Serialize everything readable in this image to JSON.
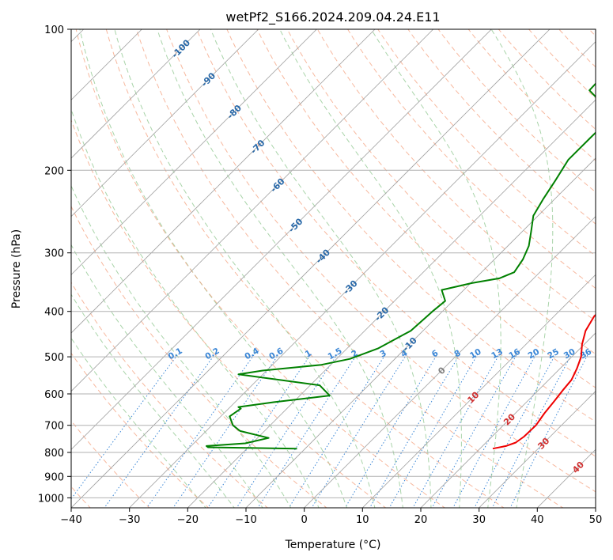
{
  "chart_data": {
    "type": "line",
    "subtype": "skew-t log-p",
    "title": "wetPf2_S166.2024.209.04.24.E11",
    "xlabel": "Temperature (°C)",
    "ylabel": "Pressure (hPa)",
    "xlim": [
      -40,
      50
    ],
    "ylim": [
      1050,
      100
    ],
    "y_scale": "log",
    "x_ticks": [
      "−40",
      "−30",
      "−20",
      "−10",
      "0",
      "10",
      "20",
      "30",
      "40",
      "50"
    ],
    "x_tick_values": [
      -40,
      -30,
      -20,
      -10,
      0,
      10,
      20,
      30,
      40,
      50
    ],
    "y_ticks": [
      "100",
      "200",
      "300",
      "400",
      "500",
      "600",
      "700",
      "800",
      "900",
      "1000"
    ],
    "y_tick_values": [
      100,
      200,
      300,
      400,
      500,
      600,
      700,
      800,
      900,
      1000
    ],
    "grid": true,
    "colors": {
      "temperature": "#ee0000",
      "dewpoint": "#008000",
      "isotherm": "#a0a0a0",
      "dry_adiabat": "#f4a07e",
      "moist_adiabat": "#9acc9a",
      "mixing_ratio": "#3a86d6",
      "moist_label": "#2868a8",
      "dry_label": "#d03030"
    },
    "series": [
      {
        "key": "temperature",
        "points": [
          {
            "p": 785,
            "t": 22.2
          },
          {
            "p": 775,
            "t": 24.0
          },
          {
            "p": 762,
            "t": 25.1
          },
          {
            "p": 740,
            "t": 25.5
          },
          {
            "p": 700,
            "t": 25.6
          },
          {
            "p": 660,
            "t": 25.0
          },
          {
            "p": 620,
            "t": 24.6
          },
          {
            "p": 590,
            "t": 24.2
          },
          {
            "p": 560,
            "t": 23.9
          },
          {
            "p": 530,
            "t": 22.9
          },
          {
            "p": 500,
            "t": 21.6
          },
          {
            "p": 470,
            "t": 19.6
          },
          {
            "p": 440,
            "t": 17.9
          },
          {
            "p": 410,
            "t": 16.9
          },
          {
            "p": 380,
            "t": 16.9
          },
          {
            "p": 355,
            "t": 16.0
          },
          {
            "p": 330,
            "t": 13.6
          },
          {
            "p": 300,
            "t": 10.1
          },
          {
            "p": 270,
            "t": 7.4
          },
          {
            "p": 240,
            "t": 5.6
          },
          {
            "p": 215,
            "t": 3.7
          },
          {
            "p": 190,
            "t": 2.3
          },
          {
            "p": 170,
            "t": 0.8
          },
          {
            "p": 155,
            "t": 0.1
          },
          {
            "p": 140,
            "t": 0.1
          },
          {
            "p": 130,
            "t": -0.7
          },
          {
            "p": 118,
            "t": -2.3
          },
          {
            "p": 110,
            "t": -3.4
          },
          {
            "p": 106,
            "t": -3.9
          }
        ]
      },
      {
        "key": "dewpoint",
        "points": [
          {
            "p": 785,
            "t": -11.4
          },
          {
            "p": 780,
            "t": -26.9
          },
          {
            "p": 775,
            "t": -27.4
          },
          {
            "p": 765,
            "t": -21.2
          },
          {
            "p": 745,
            "t": -18.1
          },
          {
            "p": 720,
            "t": -24.2
          },
          {
            "p": 700,
            "t": -26.4
          },
          {
            "p": 670,
            "t": -28.5
          },
          {
            "p": 645,
            "t": -27.9
          },
          {
            "p": 640,
            "t": -28.6
          },
          {
            "p": 625,
            "t": -23.4
          },
          {
            "p": 605,
            "t": -14.9
          },
          {
            "p": 575,
            "t": -18.4
          },
          {
            "p": 545,
            "t": -34.2
          },
          {
            "p": 535,
            "t": -30.7
          },
          {
            "p": 520,
            "t": -21.6
          },
          {
            "p": 505,
            "t": -17.7
          },
          {
            "p": 480,
            "t": -14.7
          },
          {
            "p": 440,
            "t": -12.1
          },
          {
            "p": 400,
            "t": -11.7
          },
          {
            "p": 380,
            "t": -11.3
          },
          {
            "p": 360,
            "t": -13.8
          },
          {
            "p": 348,
            "t": -9.8
          },
          {
            "p": 340,
            "t": -5.9
          },
          {
            "p": 330,
            "t": -4.4
          },
          {
            "p": 310,
            "t": -5.1
          },
          {
            "p": 290,
            "t": -6.4
          },
          {
            "p": 270,
            "t": -8.5
          },
          {
            "p": 250,
            "t": -10.8
          },
          {
            "p": 230,
            "t": -12.0
          },
          {
            "p": 210,
            "t": -13.1
          },
          {
            "p": 190,
            "t": -14.4
          },
          {
            "p": 170,
            "t": -14.4
          },
          {
            "p": 155,
            "t": -14.3
          },
          {
            "p": 145,
            "t": -16.9
          },
          {
            "p": 140,
            "t": -20.2
          },
          {
            "p": 135,
            "t": -22.7
          },
          {
            "p": 125,
            "t": -22.9
          },
          {
            "p": 115,
            "t": -21.3
          },
          {
            "p": 105,
            "t": -18.5
          },
          {
            "p": 100,
            "t": -18.3
          }
        ]
      }
    ],
    "isotherms": [
      -160,
      -150,
      -140,
      -130,
      -120,
      -110,
      -100,
      -90,
      -80,
      -70,
      -60,
      -50,
      -40,
      -30,
      -20,
      -10,
      0,
      10,
      20,
      30,
      40,
      50
    ],
    "dry_adiabats_theta_c": [
      -40,
      -30,
      -20,
      -10,
      0,
      10,
      20,
      30,
      40,
      50,
      60,
      70,
      80,
      90,
      100,
      110,
      120,
      130,
      140,
      150,
      160,
      170,
      180,
      190,
      200,
      210,
      220
    ],
    "moist_adiabats_theta_w_c": [
      -20,
      -15,
      -10,
      -5,
      0,
      5,
      10,
      15,
      20,
      25,
      30,
      35
    ],
    "mixing_ratio_lines_gkg": [
      0.1,
      0.2,
      0.4,
      0.6,
      1,
      1.5,
      2,
      3,
      4,
      6,
      8,
      10,
      13,
      16,
      20,
      25,
      30,
      36
    ],
    "mixing_ratio_labels": [
      "0.1",
      "0.2",
      "0.4",
      "0.6",
      "1",
      "1.5",
      "2",
      "3",
      "4",
      "6",
      "8",
      "10",
      "13",
      "16",
      "20",
      "25",
      "30",
      "36"
    ],
    "isotherm_labels": [
      {
        "text": "-100",
        "t": -100,
        "p": 110
      },
      {
        "text": "-90",
        "t": -90,
        "p": 128
      },
      {
        "text": "-80",
        "t": -80,
        "p": 150
      },
      {
        "text": "-70",
        "t": -70,
        "p": 178
      },
      {
        "text": "-60",
        "t": -60,
        "p": 215
      },
      {
        "text": "-50",
        "t": -50,
        "p": 262
      },
      {
        "text": "-40",
        "t": -40,
        "p": 305
      },
      {
        "text": "-30",
        "t": -30,
        "p": 355
      },
      {
        "text": "-20",
        "t": -20,
        "p": 405
      },
      {
        "text": "-10",
        "t": -10,
        "p": 470
      }
    ],
    "zero_label": {
      "text": "0",
      "t": 0,
      "p": 535
    },
    "warm_labels": [
      {
        "text": "10",
        "t": 10,
        "p": 610
      },
      {
        "text": "20",
        "t": 20,
        "p": 680
      },
      {
        "text": "30",
        "t": 30,
        "p": 765
      },
      {
        "text": "40",
        "t": 40,
        "p": 860
      }
    ]
  }
}
